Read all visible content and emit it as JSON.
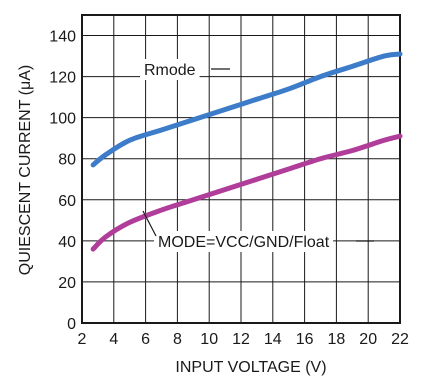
{
  "chart_data": {
    "type": "line",
    "xlabel": "INPUT VOLTAGE (V)",
    "ylabel": "QUIESCENT CURRENT (μA)",
    "xlim": [
      2,
      22
    ],
    "ylim": [
      0,
      150
    ],
    "x_ticks": [
      2,
      4,
      6,
      8,
      10,
      12,
      14,
      16,
      18,
      20,
      22
    ],
    "y_ticks": [
      0,
      20,
      40,
      60,
      80,
      100,
      120,
      140
    ],
    "grid": true,
    "series": [
      {
        "name": "Rmode",
        "color": "#3d7cc9",
        "x": [
          2.7,
          3.5,
          5,
          7,
          9,
          11,
          13,
          15,
          17,
          19,
          21,
          22
        ],
        "y": [
          77,
          82,
          89,
          94,
          99,
          104,
          109,
          114,
          120,
          125,
          130,
          131
        ]
      },
      {
        "name": "MODE=VCC/GND/Float",
        "color": "#b03d9a",
        "x": [
          2.7,
          3.5,
          5,
          7,
          9,
          11,
          13,
          15,
          17,
          19,
          21,
          22
        ],
        "y": [
          36,
          42,
          49,
          55,
          60,
          65,
          70,
          75,
          80,
          84,
          89,
          91
        ]
      }
    ]
  }
}
